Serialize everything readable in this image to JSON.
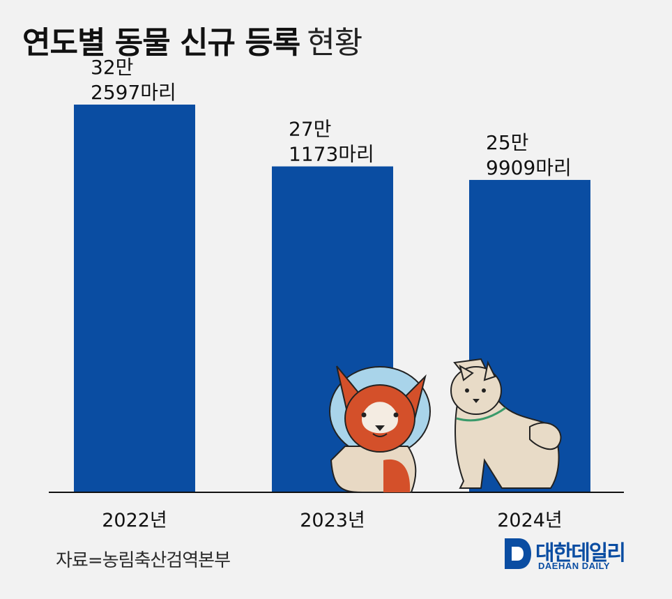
{
  "title": {
    "bold": "연도별 동물 신규 등록",
    "light": "현황"
  },
  "chart_data": {
    "type": "bar",
    "title": "연도별 동물 신규 등록 현황",
    "categories": [
      "2022년",
      "2023년",
      "2024년"
    ],
    "values": [
      322597,
      271173,
      259909
    ],
    "data_labels": [
      [
        "32만",
        "2597마리"
      ],
      [
        "27만",
        "1173마리"
      ],
      [
        "25만",
        "9909마리"
      ]
    ],
    "bar_color": "#0a4da2",
    "ylim": [
      0,
      340000
    ],
    "grid": false,
    "legend": "none"
  },
  "source": "자료=농림축산검역본부",
  "logo": {
    "name": "대한데일리",
    "sub": "DAEHAN DAILY",
    "color": "#0a4da2"
  },
  "illustrations": [
    "corgi-with-cone-icon",
    "white-dog-icon"
  ]
}
